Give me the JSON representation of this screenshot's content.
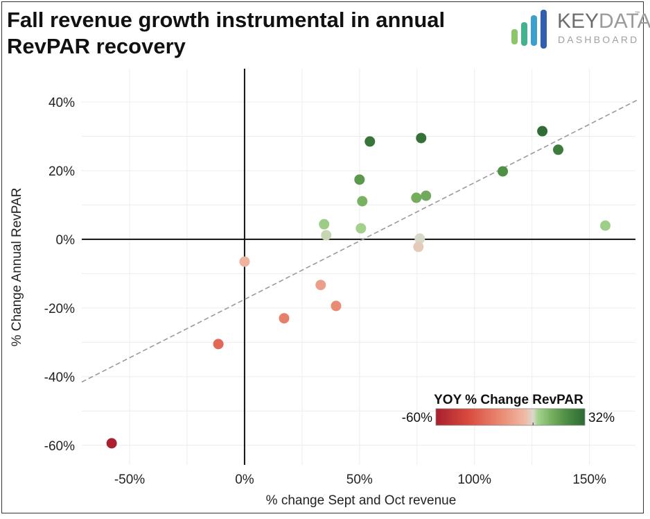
{
  "title_lines": [
    "Fall revenue growth instrumental in annual",
    "RevPAR recovery"
  ],
  "logo": {
    "primary_dark": "KEY",
    "primary_light": "DATA",
    "trademark": "™",
    "secondary": "DASHBOARD",
    "bar_colors": [
      "#8cc56a",
      "#45b28e",
      "#3d9fcf",
      "#2f5fae"
    ]
  },
  "chart_data": {
    "type": "scatter",
    "title": "Fall revenue growth instrumental in annual RevPAR recovery",
    "xlabel": "% change Sept and Oct revenue",
    "ylabel": "% Change Annual RevPAR",
    "xlim": [
      -70.8,
      170
    ],
    "ylim": [
      -65.7,
      49.7
    ],
    "x_ticks": [
      -50,
      0,
      50,
      100,
      150
    ],
    "x_tick_labels": [
      "-50%",
      "0%",
      "50%",
      "100%",
      "150%"
    ],
    "x_minor_grid": [
      -75,
      -25,
      25,
      75,
      125
    ],
    "y_ticks": [
      40,
      20,
      0,
      -20,
      -40,
      -60
    ],
    "y_tick_labels": [
      "40%",
      "20%",
      "0%",
      "-20%",
      "-40%",
      "-60%"
    ],
    "y_minor_grid": [
      30,
      10,
      -10,
      -30,
      -50
    ],
    "grid": true,
    "points": [
      {
        "x": -57.8,
        "y": -59.4
      },
      {
        "x": -11.4,
        "y": -30.5
      },
      {
        "x": 0.0,
        "y": -6.5
      },
      {
        "x": 17.2,
        "y": -23.0
      },
      {
        "x": 33.1,
        "y": -13.3
      },
      {
        "x": 39.8,
        "y": -19.4
      },
      {
        "x": 34.6,
        "y": 4.4
      },
      {
        "x": 35.5,
        "y": 1.2
      },
      {
        "x": 50.6,
        "y": 3.2
      },
      {
        "x": 51.2,
        "y": 11.1
      },
      {
        "x": 50.0,
        "y": 17.4
      },
      {
        "x": 54.5,
        "y": 28.5
      },
      {
        "x": 76.8,
        "y": 29.5
      },
      {
        "x": 74.7,
        "y": 12.1
      },
      {
        "x": 78.9,
        "y": 12.7
      },
      {
        "x": 76.2,
        "y": 0.2
      },
      {
        "x": 75.6,
        "y": -2.2
      },
      {
        "x": 112.3,
        "y": 19.8
      },
      {
        "x": 129.5,
        "y": 31.5
      },
      {
        "x": 136.4,
        "y": 26.1
      },
      {
        "x": 156.9,
        "y": 4.0
      }
    ],
    "trendline": {
      "style": "dashed",
      "color": "#9a9a9a",
      "slope": 0.34,
      "intercept": -17.5
    },
    "color_scale": {
      "title": "YOY % Change RevPAR",
      "min": -60,
      "max": 32,
      "min_label": "-60%",
      "max_label": "32%",
      "stops": [
        {
          "value": -60,
          "color": "#a8202f"
        },
        {
          "value": -40,
          "color": "#d94a3e"
        },
        {
          "value": -20,
          "color": "#e98a72"
        },
        {
          "value": -5,
          "color": "#f0b9a4"
        },
        {
          "value": 0,
          "color": "#dcd8cc"
        },
        {
          "value": 3,
          "color": "#a4d28e"
        },
        {
          "value": 12,
          "color": "#74ad5e"
        },
        {
          "value": 20,
          "color": "#4f8f45"
        },
        {
          "value": 32,
          "color": "#2e6a35"
        }
      ],
      "legend_position": "bottom-right"
    }
  }
}
